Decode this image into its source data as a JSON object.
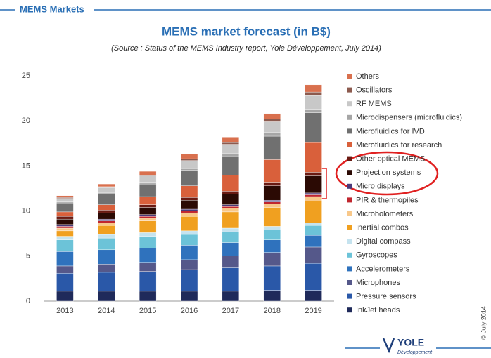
{
  "header": "MEMS Markets",
  "copyright": "© July 2014",
  "logo": {
    "name": "YOLE",
    "sub": "Développement"
  },
  "chart_data": {
    "type": "stacked_bar",
    "title": "MEMS market forecast (in B$)",
    "subtitle": "(Source : Status of the MEMS Industry report, Yole Développement, July 2014)",
    "categories": [
      "2013",
      "2014",
      "2015",
      "2016",
      "2017",
      "2018",
      "2019"
    ],
    "ylim": [
      0,
      25
    ],
    "yticks": [
      0,
      5,
      10,
      15,
      20,
      25
    ],
    "grid": false,
    "series": [
      {
        "name": "InkJet heads",
        "color": "#1f2a5a",
        "values": [
          1.1,
          1.1,
          1.1,
          1.1,
          1.1,
          1.2,
          1.2
        ]
      },
      {
        "name": "Pressure sensors",
        "color": "#2a58a8",
        "values": [
          2.0,
          2.1,
          2.2,
          2.4,
          2.6,
          2.7,
          3.0
        ]
      },
      {
        "name": "Microphones",
        "color": "#55588a",
        "values": [
          0.8,
          0.9,
          1.0,
          1.1,
          1.3,
          1.5,
          1.8
        ]
      },
      {
        "name": "Accelerometers",
        "color": "#2f72bd",
        "values": [
          1.6,
          1.6,
          1.6,
          1.6,
          1.5,
          1.4,
          1.3
        ]
      },
      {
        "name": "Gyroscopes",
        "color": "#6cc3d8",
        "values": [
          1.3,
          1.3,
          1.3,
          1.2,
          1.2,
          1.1,
          1.1
        ]
      },
      {
        "name": "Digital compass",
        "color": "#c5e3ef",
        "values": [
          0.4,
          0.4,
          0.4,
          0.4,
          0.4,
          0.4,
          0.3
        ]
      },
      {
        "name": "Inertial combos",
        "color": "#f0a020",
        "values": [
          0.6,
          1.0,
          1.3,
          1.6,
          1.8,
          2.1,
          2.4
        ]
      },
      {
        "name": "Microbolometers",
        "color": "#f8c88a",
        "values": [
          0.3,
          0.3,
          0.3,
          0.4,
          0.4,
          0.4,
          0.5
        ]
      },
      {
        "name": "PIR & thermopiles",
        "color": "#c0262e",
        "values": [
          0.2,
          0.2,
          0.2,
          0.2,
          0.2,
          0.2,
          0.2
        ]
      },
      {
        "name": "Micro displays",
        "color": "#4a3a7a",
        "values": [
          0.2,
          0.2,
          0.2,
          0.2,
          0.2,
          0.2,
          0.2
        ]
      },
      {
        "name": "Projection systems",
        "color": "#2b0a04",
        "values": [
          0.6,
          0.7,
          0.8,
          1.0,
          1.2,
          1.6,
          1.9
        ]
      },
      {
        "name": "Other optical MEMS",
        "color": "#6a1a12",
        "values": [
          0.3,
          0.3,
          0.3,
          0.3,
          0.3,
          0.4,
          0.4
        ]
      },
      {
        "name": "Microfluidics for research",
        "color": "#d9603b",
        "values": [
          0.5,
          0.6,
          0.9,
          1.3,
          1.8,
          2.5,
          3.3
        ]
      },
      {
        "name": "Microfluidics for IVD",
        "color": "#707070",
        "values": [
          1.0,
          1.2,
          1.4,
          1.7,
          2.1,
          2.6,
          3.3
        ]
      },
      {
        "name": "Microdispensers (microfluidics)",
        "color": "#a6a6a6",
        "values": [
          0.1,
          0.1,
          0.2,
          0.2,
          0.3,
          0.4,
          0.4
        ]
      },
      {
        "name": "RF MEMS",
        "color": "#c8c8c8",
        "values": [
          0.4,
          0.6,
          0.7,
          0.9,
          1.0,
          1.2,
          1.5
        ]
      },
      {
        "name": "Oscillators",
        "color": "#8c5a4e",
        "values": [
          0.1,
          0.1,
          0.1,
          0.2,
          0.2,
          0.3,
          0.4
        ]
      },
      {
        "name": "Others",
        "color": "#d9704e",
        "values": [
          0.2,
          0.3,
          0.4,
          0.5,
          0.6,
          0.6,
          0.8
        ]
      }
    ]
  }
}
